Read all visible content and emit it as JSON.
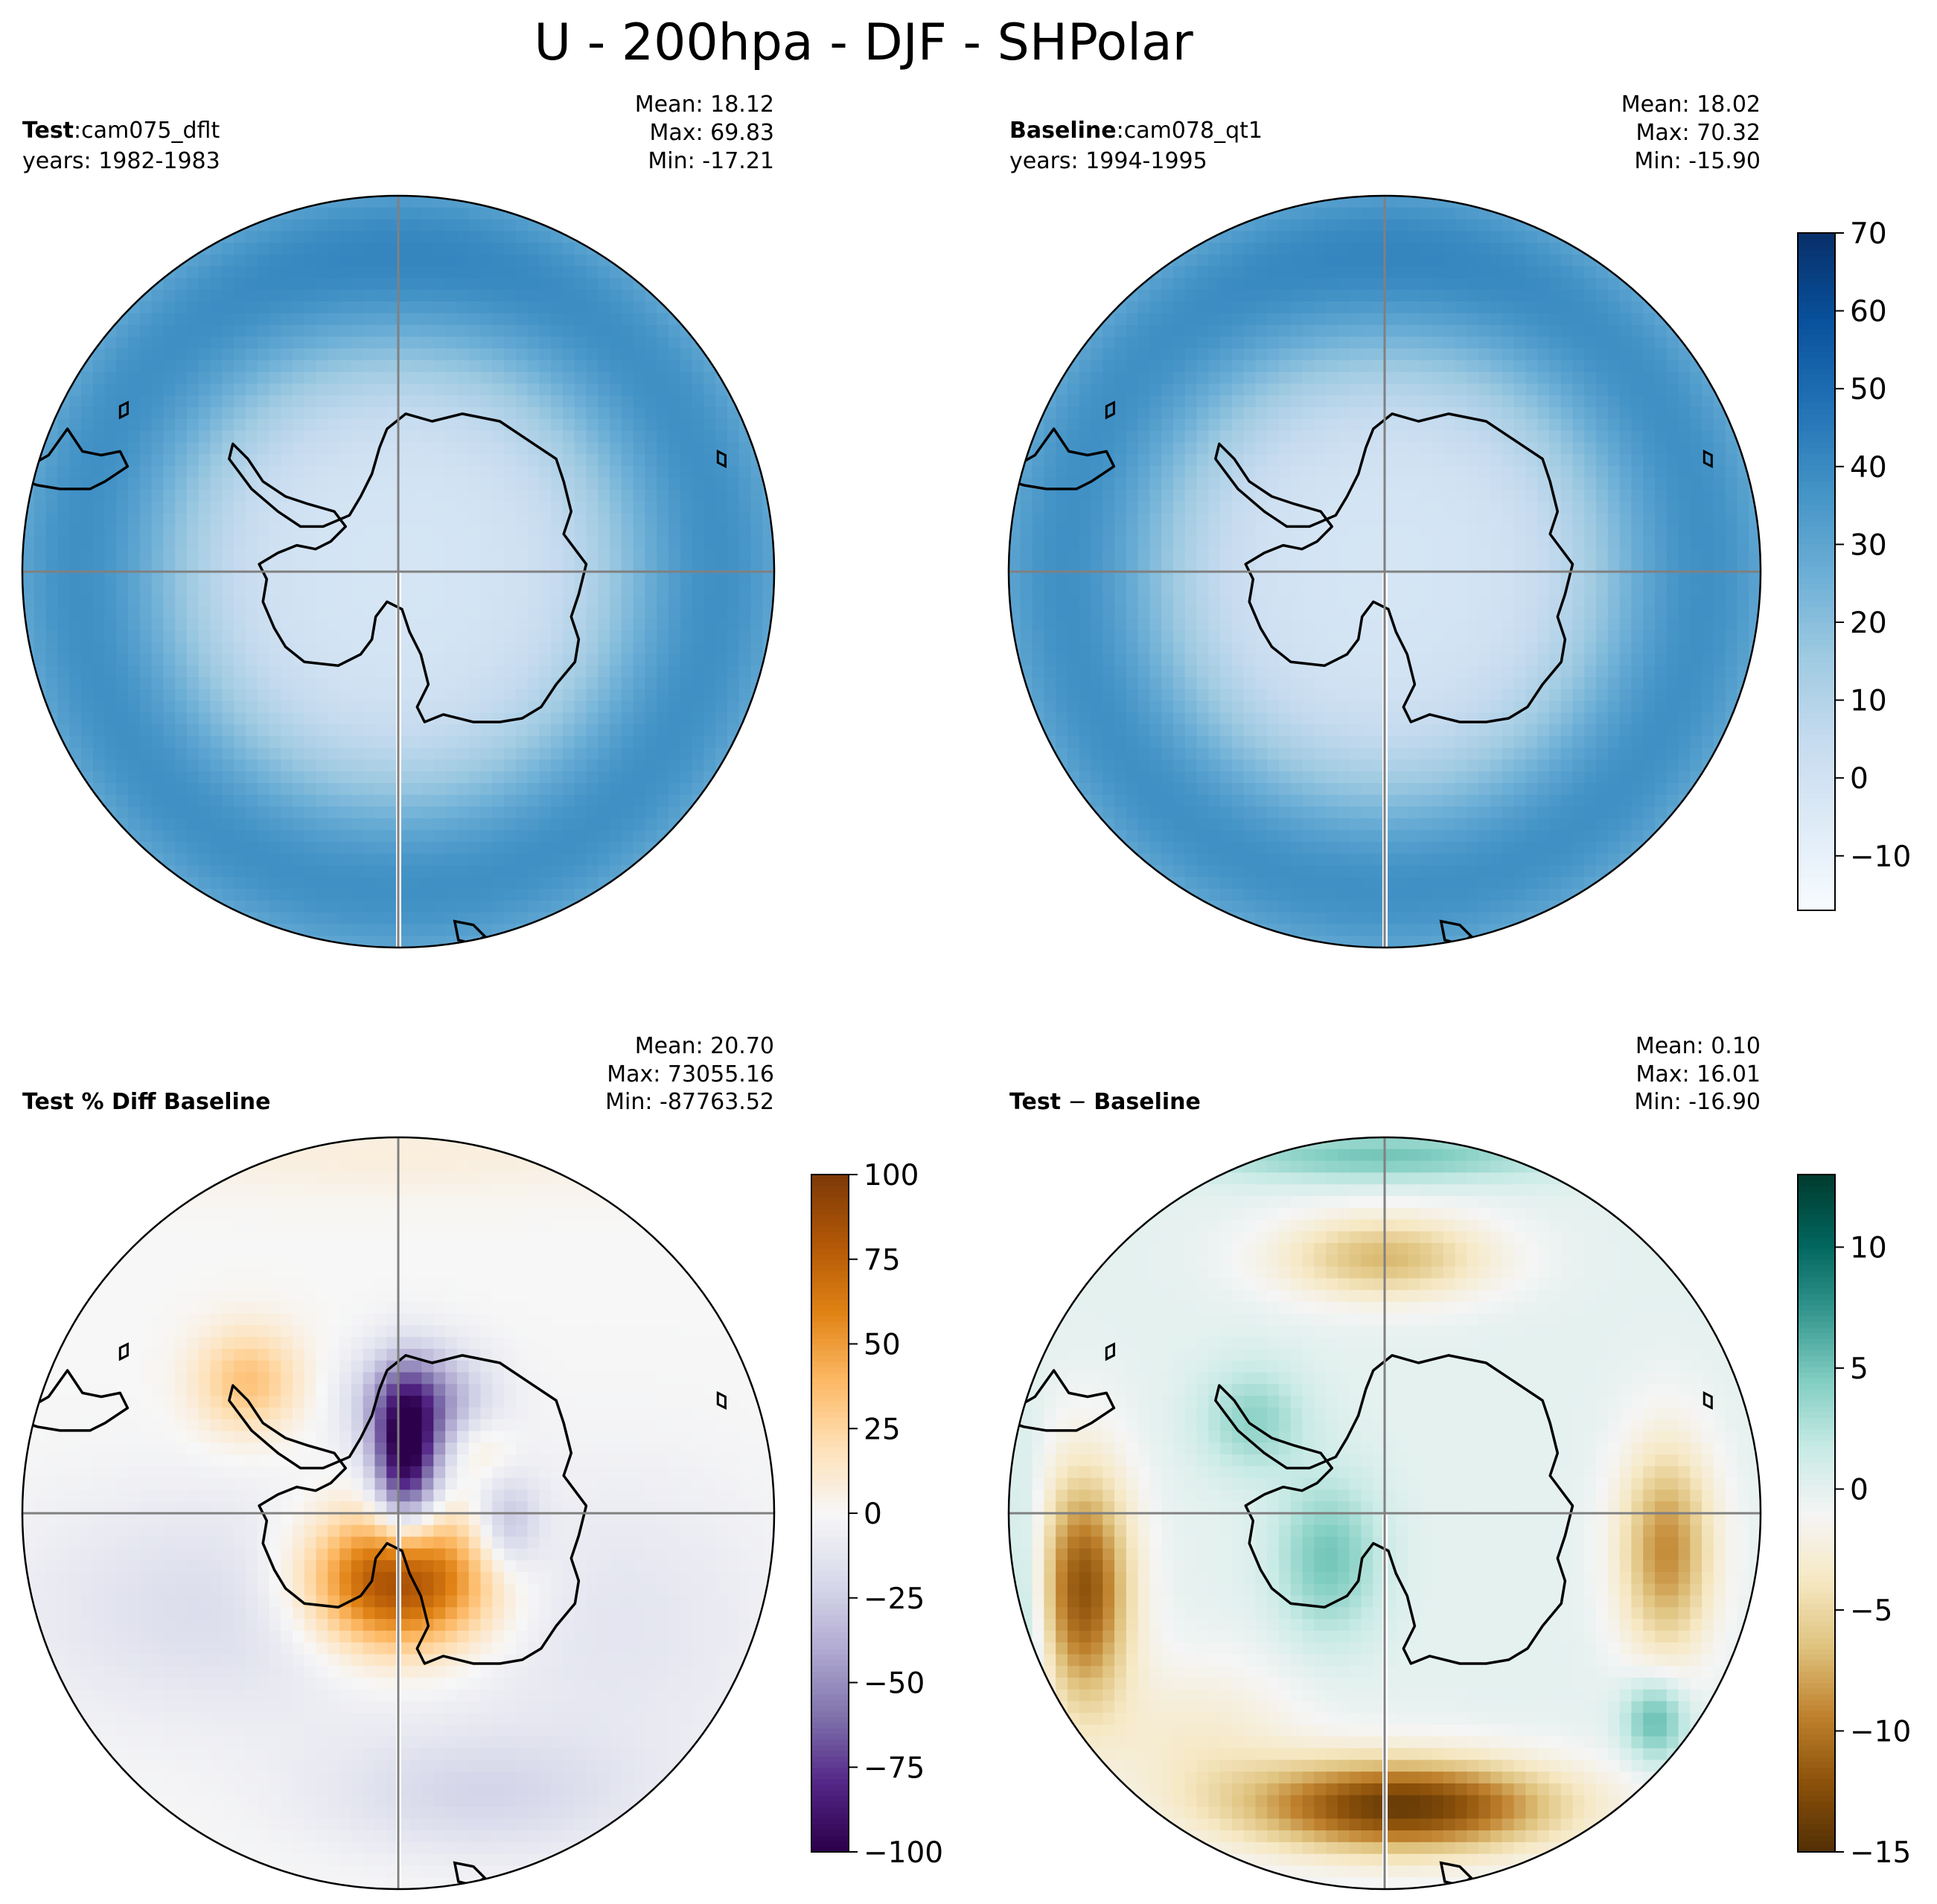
{
  "figure": {
    "title": "U - 200hpa - DJF - SHPolar"
  },
  "chart_data": [
    {
      "type": "heatmap",
      "projection": "south-polar-stereographic",
      "panel": "test",
      "label_bold": "Test",
      "label_sep": ":",
      "label_rest": "cam075_dflt",
      "years": "years: 1982-1983",
      "stats": [
        "Mean: 18.12",
        "Max: 69.83",
        "Min: -17.21"
      ],
      "colormap": "Blues",
      "vmin": -17,
      "vmax": 70,
      "field": "zonal-ring",
      "colorbar": null
    },
    {
      "type": "heatmap",
      "projection": "south-polar-stereographic",
      "panel": "baseline",
      "label_bold": "Baseline",
      "label_sep": ":",
      "label_rest": "cam078_qt1",
      "years": "years: 1994-1995",
      "stats": [
        "Mean: 18.02",
        "Max: 70.32",
        "Min: -15.90"
      ],
      "colormap": "Blues",
      "vmin": -17,
      "vmax": 70,
      "field": "zonal-ring",
      "colorbar": {
        "ticks": [
          -10,
          0,
          10,
          20,
          30,
          40,
          50,
          60,
          70
        ],
        "tick_labels": [
          "−10",
          "0",
          "10",
          "20",
          "30",
          "40",
          "50",
          "60",
          "70"
        ]
      }
    },
    {
      "type": "heatmap",
      "projection": "south-polar-stereographic",
      "panel": "pct-diff",
      "label_bold": "Test % Diff Baseline",
      "label_sep": "",
      "label_rest": "",
      "years": "",
      "stats": [
        "Mean: 20.70",
        "Max: 73055.16",
        "Min: -87763.52"
      ],
      "colormap": "PuOr",
      "vmin": -100,
      "vmax": 100,
      "field": "pct-diff",
      "colorbar": {
        "ticks": [
          -100,
          -75,
          -50,
          -25,
          0,
          25,
          50,
          75,
          100
        ],
        "tick_labels": [
          "−100",
          "−75",
          "−50",
          "−25",
          "0",
          "25",
          "50",
          "75",
          "100"
        ]
      }
    },
    {
      "type": "heatmap",
      "projection": "south-polar-stereographic",
      "panel": "diff",
      "label_bold": "Test",
      "label_sep": " − ",
      "label_rest": "Baseline",
      "label_rest_bold": true,
      "years": "",
      "stats": [
        "Mean:  0.10",
        "Max: 16.01",
        "Min: -16.90"
      ],
      "colormap": "BrBG",
      "vmin": -15,
      "vmax": 13,
      "field": "abs-diff",
      "colorbar": {
        "ticks": [
          -15,
          -10,
          -5,
          0,
          5,
          10
        ],
        "tick_labels": [
          "−15",
          "−10",
          "−5",
          "0",
          "5",
          "10"
        ]
      }
    }
  ]
}
